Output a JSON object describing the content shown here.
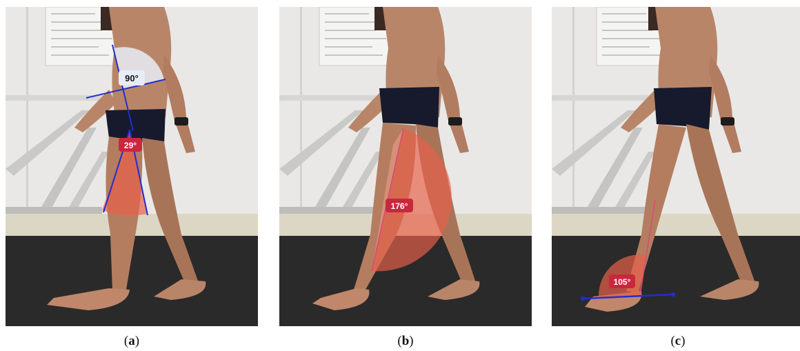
{
  "figure": {
    "panels": [
      {
        "caption_letter": "a",
        "angles": [
          {
            "value": 90,
            "label": "90°",
            "joint": "hip-trunk"
          },
          {
            "value": 29,
            "label": "29°",
            "joint": "hip-thigh"
          }
        ]
      },
      {
        "caption_letter": "b",
        "angles": [
          {
            "value": 176,
            "label": "176°",
            "joint": "knee"
          }
        ]
      },
      {
        "caption_letter": "c",
        "angles": [
          {
            "value": 105,
            "label": "105°",
            "joint": "ankle"
          }
        ]
      }
    ],
    "colors": {
      "overlay_red": "#e8604a",
      "label_red": "#c8283c",
      "segment_blue": "#1f2fd0",
      "segment_pink": "#d84a7a",
      "overlay_white": "#e8ecf6"
    }
  }
}
